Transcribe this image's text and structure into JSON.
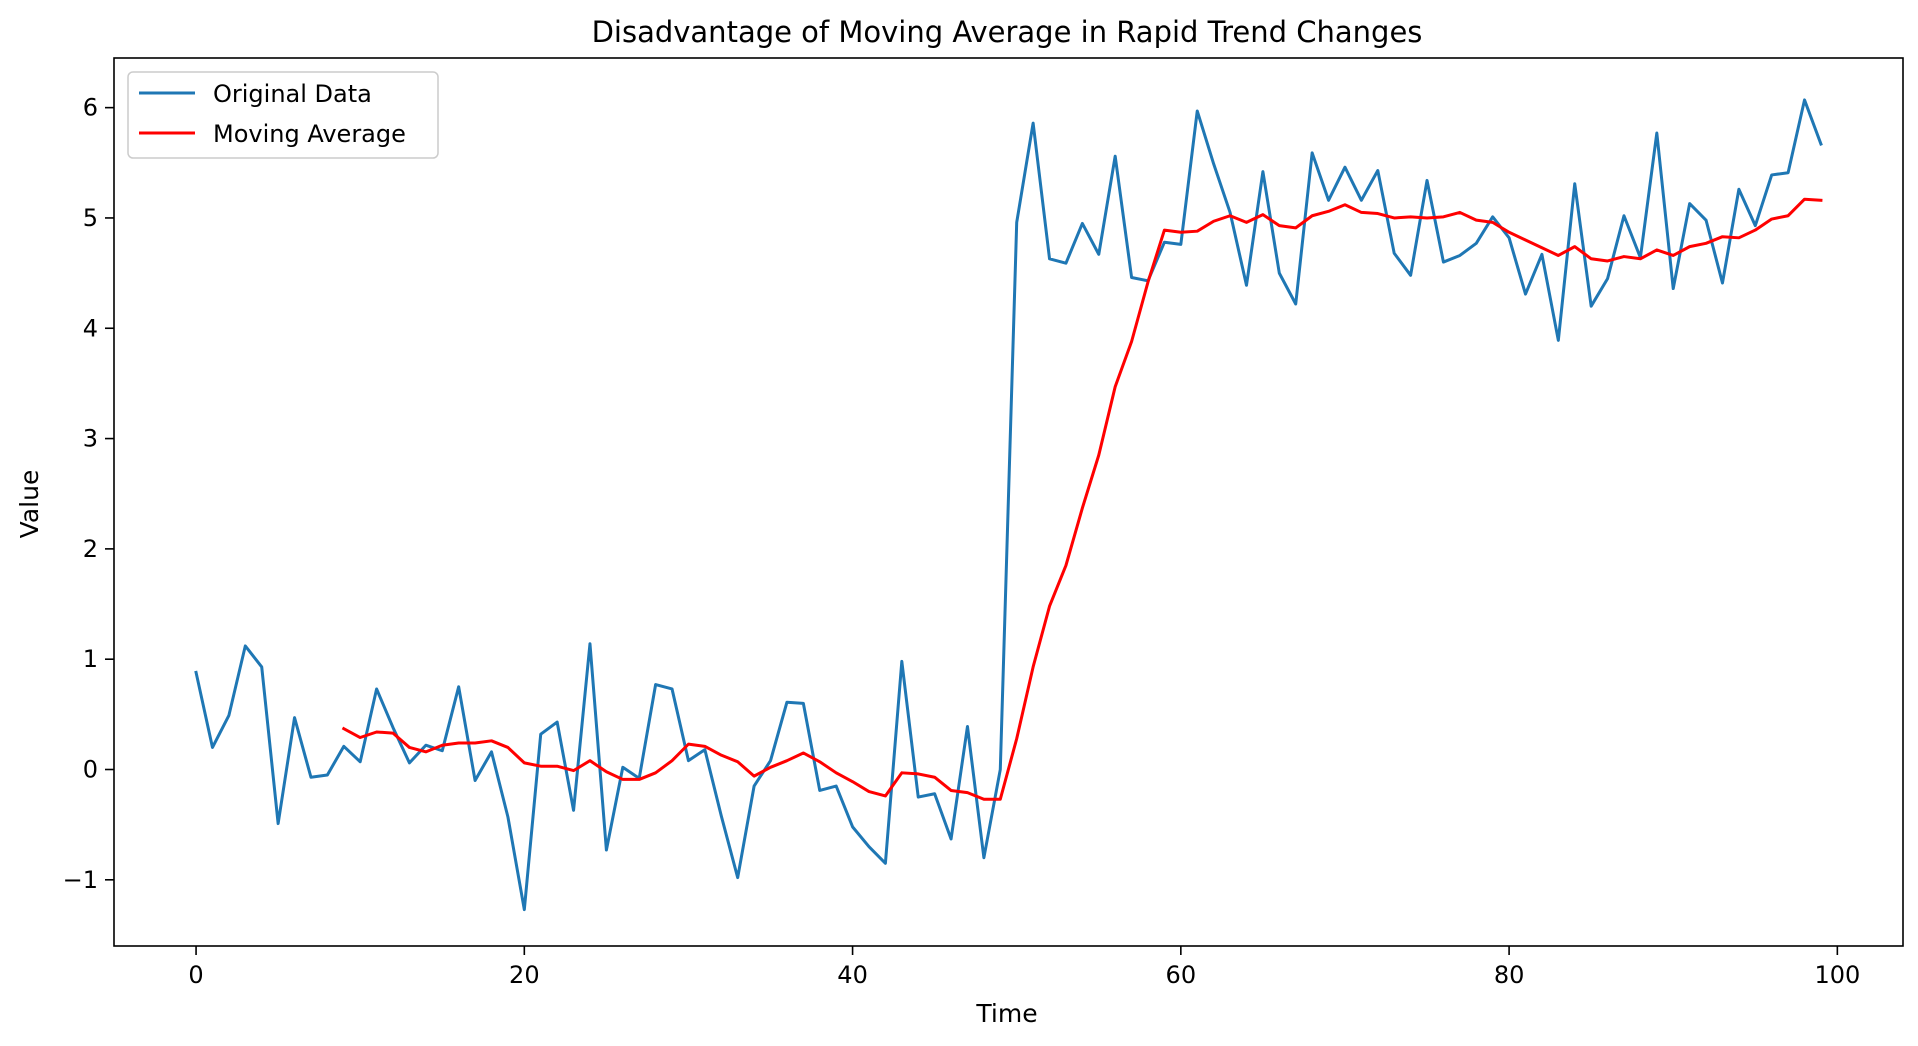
{
  "chart_data": {
    "type": "line",
    "title": "Disadvantage of Moving Average in Rapid Trend Changes",
    "xlabel": "Time",
    "ylabel": "Value",
    "xlim": [
      -5,
      104
    ],
    "ylim": [
      -1.6,
      6.45
    ],
    "xticks": [
      0,
      20,
      40,
      60,
      80,
      100
    ],
    "yticks": [
      -1,
      0,
      1,
      2,
      3,
      4,
      5,
      6
    ],
    "grid": false,
    "legend_position": "top-left",
    "series": [
      {
        "name": "Original Data",
        "color": "#1f77b4",
        "x_start": 0,
        "values": [
          0.88,
          0.2,
          0.49,
          1.12,
          0.93,
          -0.49,
          0.47,
          -0.07,
          -0.05,
          0.21,
          0.07,
          0.73,
          0.38,
          0.06,
          0.22,
          0.17,
          0.75,
          -0.1,
          0.16,
          -0.43,
          -1.27,
          0.32,
          0.43,
          -0.37,
          1.14,
          -0.73,
          0.02,
          -0.08,
          0.77,
          0.73,
          0.08,
          0.18,
          -0.42,
          -0.98,
          -0.15,
          0.08,
          0.61,
          0.6,
          -0.19,
          -0.15,
          -0.52,
          -0.7,
          -0.85,
          0.98,
          -0.25,
          -0.22,
          -0.63,
          0.39,
          -0.8,
          0.0,
          4.96,
          5.86,
          4.63,
          4.59,
          4.95,
          4.67,
          5.56,
          4.46,
          4.43,
          4.78,
          4.76,
          5.97,
          5.49,
          5.05,
          4.39,
          5.42,
          4.5,
          4.22,
          5.59,
          5.16,
          5.46,
          5.16,
          5.43,
          4.68,
          4.48,
          5.34,
          4.6,
          4.66,
          4.77,
          5.01,
          4.82,
          4.31,
          4.67,
          3.89,
          5.31,
          4.2,
          4.45,
          5.02,
          4.64,
          5.77,
          4.36,
          5.13,
          4.98,
          4.41,
          5.26,
          4.93,
          5.39,
          5.41,
          6.07,
          5.67
        ]
      },
      {
        "name": "Moving Average",
        "color": "#ff0000",
        "x_start": 9,
        "values": [
          0.37,
          0.29,
          0.34,
          0.33,
          0.2,
          0.16,
          0.22,
          0.24,
          0.24,
          0.26,
          0.2,
          0.06,
          0.03,
          0.03,
          -0.01,
          0.08,
          -0.02,
          -0.09,
          -0.09,
          -0.03,
          0.08,
          0.23,
          0.21,
          0.13,
          0.07,
          -0.06,
          0.02,
          0.08,
          0.15,
          0.07,
          -0.03,
          -0.11,
          -0.2,
          -0.24,
          -0.03,
          -0.04,
          -0.07,
          -0.19,
          -0.21,
          -0.27,
          -0.27,
          0.28,
          0.93,
          1.48,
          1.85,
          2.37,
          2.85,
          3.47,
          3.88,
          4.42,
          4.89,
          4.87,
          4.88,
          4.97,
          5.02,
          4.96,
          5.03,
          4.93,
          4.91,
          5.02,
          5.06,
          5.12,
          5.05,
          5.04,
          5.0,
          5.01,
          5.0,
          5.01,
          5.05,
          4.98,
          4.96,
          4.87,
          4.8,
          4.73,
          4.66,
          4.74,
          4.63,
          4.61,
          4.65,
          4.63,
          4.71,
          4.66,
          4.74,
          4.77,
          4.83,
          4.82,
          4.89,
          4.99,
          5.02,
          5.17,
          5.16
        ]
      }
    ]
  }
}
